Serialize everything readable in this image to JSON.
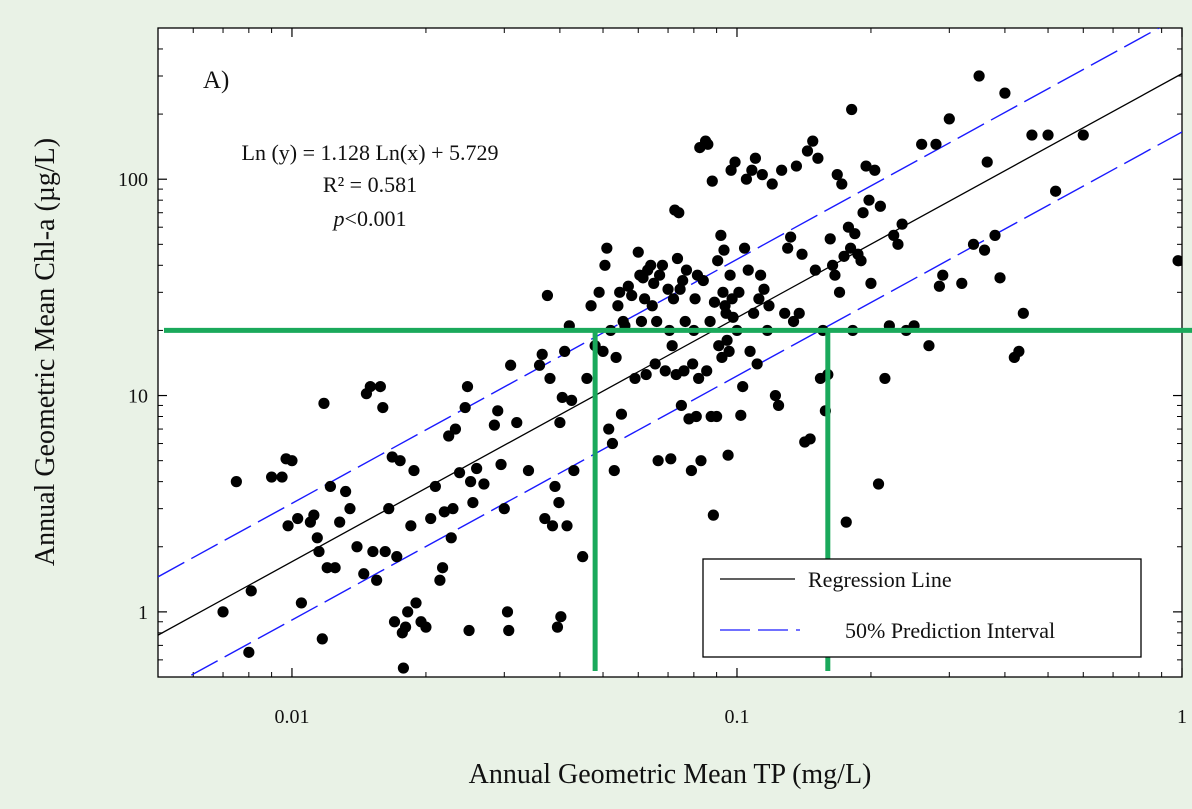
{
  "chart_data": {
    "type": "scatter",
    "panel_label": "A)",
    "xlabel": "Annual Geometric Mean TP (mg/L)",
    "ylabel": "Annual Geometric Mean Chl-a (µg/L)",
    "xscale": "log",
    "yscale": "log",
    "xlim": [
      0.005,
      1.0
    ],
    "ylim": [
      0.5,
      500
    ],
    "x_ticks": [
      {
        "value": 0.01,
        "label": "0.01"
      },
      {
        "value": 0.1,
        "label": "0.1"
      },
      {
        "value": 1,
        "label": "1"
      }
    ],
    "y_ticks": [
      {
        "value": 1,
        "label": "1"
      },
      {
        "value": 10,
        "label": "10"
      },
      {
        "value": 100,
        "label": "100"
      }
    ],
    "grid": false,
    "annotations": {
      "equation": "Ln (y) = 1.128 Ln(x) + 5.729",
      "r2": "R² = 0.581",
      "p_italic": "p",
      "p_rest": "<0.001"
    },
    "regression": {
      "slope": 1.128,
      "intercept": 5.729
    },
    "prediction_interval_factor": 1.86,
    "legend": {
      "placement": "bottom-right",
      "entries": [
        {
          "label": "Regression Line",
          "style": "solid",
          "color": "#000000"
        },
        {
          "label": "50% Prediction Interval",
          "style": "dashed",
          "color": "#1a1aff"
        }
      ]
    },
    "reference_lines": {
      "color": "#1aa95b",
      "horizontal_y": 20,
      "vertical_x": [
        0.048,
        0.16
      ]
    },
    "series": [
      {
        "points": [
          [
            0.007,
            1.0
          ],
          [
            0.0075,
            4.0
          ],
          [
            0.008,
            0.65
          ],
          [
            0.0081,
            1.25
          ],
          [
            0.009,
            4.2
          ],
          [
            0.0095,
            4.2
          ],
          [
            0.0097,
            5.1
          ],
          [
            0.0098,
            2.5
          ],
          [
            0.01,
            5.0
          ],
          [
            0.0103,
            2.7
          ],
          [
            0.0105,
            1.1
          ],
          [
            0.011,
            2.6
          ],
          [
            0.0112,
            2.8
          ],
          [
            0.0114,
            2.2
          ],
          [
            0.0115,
            1.9
          ],
          [
            0.0117,
            0.75
          ],
          [
            0.0118,
            9.2
          ],
          [
            0.012,
            1.6
          ],
          [
            0.0122,
            3.8
          ],
          [
            0.0125,
            1.6
          ],
          [
            0.0128,
            2.6
          ],
          [
            0.0132,
            3.6
          ],
          [
            0.0135,
            3.0
          ],
          [
            0.014,
            2.0
          ],
          [
            0.0145,
            1.5
          ],
          [
            0.0147,
            10.2
          ],
          [
            0.015,
            11.0
          ],
          [
            0.0152,
            1.9
          ],
          [
            0.0155,
            1.4
          ],
          [
            0.0158,
            11.0
          ],
          [
            0.016,
            8.8
          ],
          [
            0.0162,
            1.9
          ],
          [
            0.0165,
            3.0
          ],
          [
            0.0168,
            5.2
          ],
          [
            0.017,
            0.9
          ],
          [
            0.0172,
            1.8
          ],
          [
            0.0175,
            5.0
          ],
          [
            0.0177,
            0.8
          ],
          [
            0.0178,
            0.55
          ],
          [
            0.018,
            0.85
          ],
          [
            0.0182,
            1.0
          ],
          [
            0.0185,
            2.5
          ],
          [
            0.0188,
            4.5
          ],
          [
            0.019,
            1.1
          ],
          [
            0.0195,
            0.9
          ],
          [
            0.02,
            0.85
          ],
          [
            0.0205,
            2.7
          ],
          [
            0.021,
            3.8
          ],
          [
            0.0215,
            1.4
          ],
          [
            0.0218,
            1.6
          ],
          [
            0.022,
            2.9
          ],
          [
            0.0225,
            6.5
          ],
          [
            0.0228,
            2.2
          ],
          [
            0.023,
            3.0
          ],
          [
            0.0233,
            7.0
          ],
          [
            0.0238,
            4.4
          ],
          [
            0.0245,
            8.8
          ],
          [
            0.0248,
            11.0
          ],
          [
            0.025,
            0.82
          ],
          [
            0.0252,
            4.0
          ],
          [
            0.0255,
            3.2
          ],
          [
            0.026,
            4.6
          ],
          [
            0.027,
            3.9
          ],
          [
            0.0285,
            7.3
          ],
          [
            0.029,
            8.5
          ],
          [
            0.0295,
            4.8
          ],
          [
            0.03,
            3.0
          ],
          [
            0.0305,
            1.0
          ],
          [
            0.0307,
            0.82
          ],
          [
            0.031,
            13.8
          ],
          [
            0.032,
            7.5
          ],
          [
            0.034,
            4.5
          ],
          [
            0.036,
            13.8
          ],
          [
            0.0365,
            15.5
          ],
          [
            0.037,
            2.7
          ],
          [
            0.0375,
            29.0
          ],
          [
            0.038,
            12.0
          ],
          [
            0.0385,
            2.5
          ],
          [
            0.039,
            3.8
          ],
          [
            0.0395,
            0.85
          ],
          [
            0.0398,
            3.2
          ],
          [
            0.04,
            7.5
          ],
          [
            0.0402,
            0.95
          ],
          [
            0.0405,
            9.8
          ],
          [
            0.041,
            16.0
          ],
          [
            0.0415,
            2.5
          ],
          [
            0.042,
            21.0
          ],
          [
            0.0425,
            9.5
          ],
          [
            0.043,
            4.5
          ],
          [
            0.045,
            1.8
          ],
          [
            0.046,
            12.0
          ],
          [
            0.047,
            26.0
          ],
          [
            0.048,
            17.0
          ],
          [
            0.049,
            30.0
          ],
          [
            0.05,
            16.0
          ],
          [
            0.0505,
            40.0
          ],
          [
            0.051,
            48.0
          ],
          [
            0.0515,
            7.0
          ],
          [
            0.052,
            20.0
          ],
          [
            0.0525,
            6.0
          ],
          [
            0.053,
            4.5
          ],
          [
            0.0535,
            15.0
          ],
          [
            0.054,
            26.0
          ],
          [
            0.0545,
            30.0
          ],
          [
            0.055,
            8.2
          ],
          [
            0.0555,
            22.0
          ],
          [
            0.056,
            21.0
          ],
          [
            0.057,
            32.0
          ],
          [
            0.058,
            29.0
          ],
          [
            0.059,
            12.0
          ],
          [
            0.06,
            46.0
          ],
          [
            0.0605,
            36.0
          ],
          [
            0.061,
            22.0
          ],
          [
            0.0615,
            35.0
          ],
          [
            0.062,
            28.0
          ],
          [
            0.0625,
            12.5
          ],
          [
            0.063,
            38.0
          ],
          [
            0.064,
            40.0
          ],
          [
            0.0645,
            26.0
          ],
          [
            0.065,
            33.0
          ],
          [
            0.0655,
            14.0
          ],
          [
            0.066,
            22.0
          ],
          [
            0.0665,
            5.0
          ],
          [
            0.067,
            36.0
          ],
          [
            0.068,
            40.0
          ],
          [
            0.069,
            13.0
          ],
          [
            0.07,
            31.0
          ],
          [
            0.0705,
            20.0
          ],
          [
            0.071,
            5.1
          ],
          [
            0.0715,
            17.0
          ],
          [
            0.072,
            28.0
          ],
          [
            0.0725,
            72.0
          ],
          [
            0.073,
            12.5
          ],
          [
            0.0735,
            43.0
          ],
          [
            0.074,
            70.0
          ],
          [
            0.0745,
            31.0
          ],
          [
            0.075,
            9.0
          ],
          [
            0.0755,
            34.0
          ],
          [
            0.076,
            13.0
          ],
          [
            0.0765,
            22.0
          ],
          [
            0.077,
            38.0
          ],
          [
            0.078,
            7.8
          ],
          [
            0.079,
            4.5
          ],
          [
            0.0795,
            14.0
          ],
          [
            0.08,
            20.0
          ],
          [
            0.0805,
            28.0
          ],
          [
            0.081,
            8.0
          ],
          [
            0.0815,
            36.0
          ],
          [
            0.082,
            12.0
          ],
          [
            0.0825,
            140.0
          ],
          [
            0.083,
            5.0
          ],
          [
            0.084,
            34.0
          ],
          [
            0.085,
            150.0
          ],
          [
            0.0855,
            13.0
          ],
          [
            0.086,
            145.0
          ],
          [
            0.087,
            22.0
          ],
          [
            0.0875,
            8.0
          ],
          [
            0.088,
            98.0
          ],
          [
            0.0885,
            2.8
          ],
          [
            0.089,
            27.0
          ],
          [
            0.09,
            8.0
          ],
          [
            0.0905,
            42.0
          ],
          [
            0.091,
            17.0
          ],
          [
            0.092,
            55.0
          ],
          [
            0.0925,
            15.0
          ],
          [
            0.093,
            30.0
          ],
          [
            0.0935,
            47.0
          ],
          [
            0.094,
            26.0
          ],
          [
            0.0945,
            24.0
          ],
          [
            0.095,
            18.0
          ],
          [
            0.0955,
            5.3
          ],
          [
            0.096,
            16.0
          ],
          [
            0.0965,
            36.0
          ],
          [
            0.097,
            110.0
          ],
          [
            0.0975,
            28.0
          ],
          [
            0.098,
            23.0
          ],
          [
            0.099,
            120.0
          ],
          [
            0.1,
            20.0
          ],
          [
            0.101,
            30.0
          ],
          [
            0.102,
            8.1
          ],
          [
            0.103,
            11.0
          ],
          [
            0.104,
            48.0
          ],
          [
            0.105,
            100.0
          ],
          [
            0.106,
            38.0
          ],
          [
            0.107,
            16.0
          ],
          [
            0.108,
            110.0
          ],
          [
            0.109,
            24.0
          ],
          [
            0.11,
            125.0
          ],
          [
            0.111,
            14.0
          ],
          [
            0.112,
            28.0
          ],
          [
            0.113,
            36.0
          ],
          [
            0.114,
            105.0
          ],
          [
            0.115,
            31.0
          ],
          [
            0.117,
            20.0
          ],
          [
            0.118,
            26.0
          ],
          [
            0.12,
            95.0
          ],
          [
            0.122,
            10.0
          ],
          [
            0.124,
            9.0
          ],
          [
            0.126,
            110.0
          ],
          [
            0.128,
            24.0
          ],
          [
            0.13,
            48.0
          ],
          [
            0.132,
            54.0
          ],
          [
            0.134,
            22.0
          ],
          [
            0.136,
            115.0
          ],
          [
            0.138,
            24.0
          ],
          [
            0.14,
            45.0
          ],
          [
            0.142,
            6.1
          ],
          [
            0.144,
            135.0
          ],
          [
            0.146,
            6.3
          ],
          [
            0.148,
            150.0
          ],
          [
            0.15,
            38.0
          ],
          [
            0.152,
            125.0
          ],
          [
            0.154,
            12.0
          ],
          [
            0.156,
            20.0
          ],
          [
            0.158,
            8.5
          ],
          [
            0.16,
            12.5
          ],
          [
            0.162,
            53.0
          ],
          [
            0.164,
            40.0
          ],
          [
            0.166,
            36.0
          ],
          [
            0.168,
            105.0
          ],
          [
            0.17,
            30.0
          ],
          [
            0.172,
            95.0
          ],
          [
            0.174,
            44.0
          ],
          [
            0.176,
            2.6
          ],
          [
            0.178,
            60.0
          ],
          [
            0.18,
            48.0
          ],
          [
            0.181,
            210.0
          ],
          [
            0.182,
            20.0
          ],
          [
            0.184,
            56.0
          ],
          [
            0.187,
            45.0
          ],
          [
            0.19,
            42.0
          ],
          [
            0.192,
            70.0
          ],
          [
            0.195,
            115.0
          ],
          [
            0.198,
            80.0
          ],
          [
            0.2,
            33.0
          ],
          [
            0.204,
            110.0
          ],
          [
            0.208,
            3.9
          ],
          [
            0.21,
            75.0
          ],
          [
            0.215,
            12.0
          ],
          [
            0.22,
            21.0
          ],
          [
            0.225,
            55.0
          ],
          [
            0.23,
            50.0
          ],
          [
            0.235,
            62.0
          ],
          [
            0.24,
            20.0
          ],
          [
            0.25,
            21.0
          ],
          [
            0.26,
            145.0
          ],
          [
            0.27,
            17.0
          ],
          [
            0.28,
            145.0
          ],
          [
            0.285,
            32.0
          ],
          [
            0.29,
            36.0
          ],
          [
            0.3,
            190.0
          ],
          [
            0.32,
            33.0
          ],
          [
            0.34,
            50.0
          ],
          [
            0.35,
            300.0
          ],
          [
            0.36,
            47.0
          ],
          [
            0.365,
            120.0
          ],
          [
            0.38,
            55.0
          ],
          [
            0.39,
            35.0
          ],
          [
            0.4,
            250.0
          ],
          [
            0.42,
            15.0
          ],
          [
            0.43,
            16.0
          ],
          [
            0.44,
            24.0
          ],
          [
            0.46,
            160.0
          ],
          [
            0.5,
            160.0
          ],
          [
            0.52,
            88.0
          ],
          [
            0.6,
            160.0
          ],
          [
            0.98,
            42.0
          ]
        ]
      }
    ]
  }
}
